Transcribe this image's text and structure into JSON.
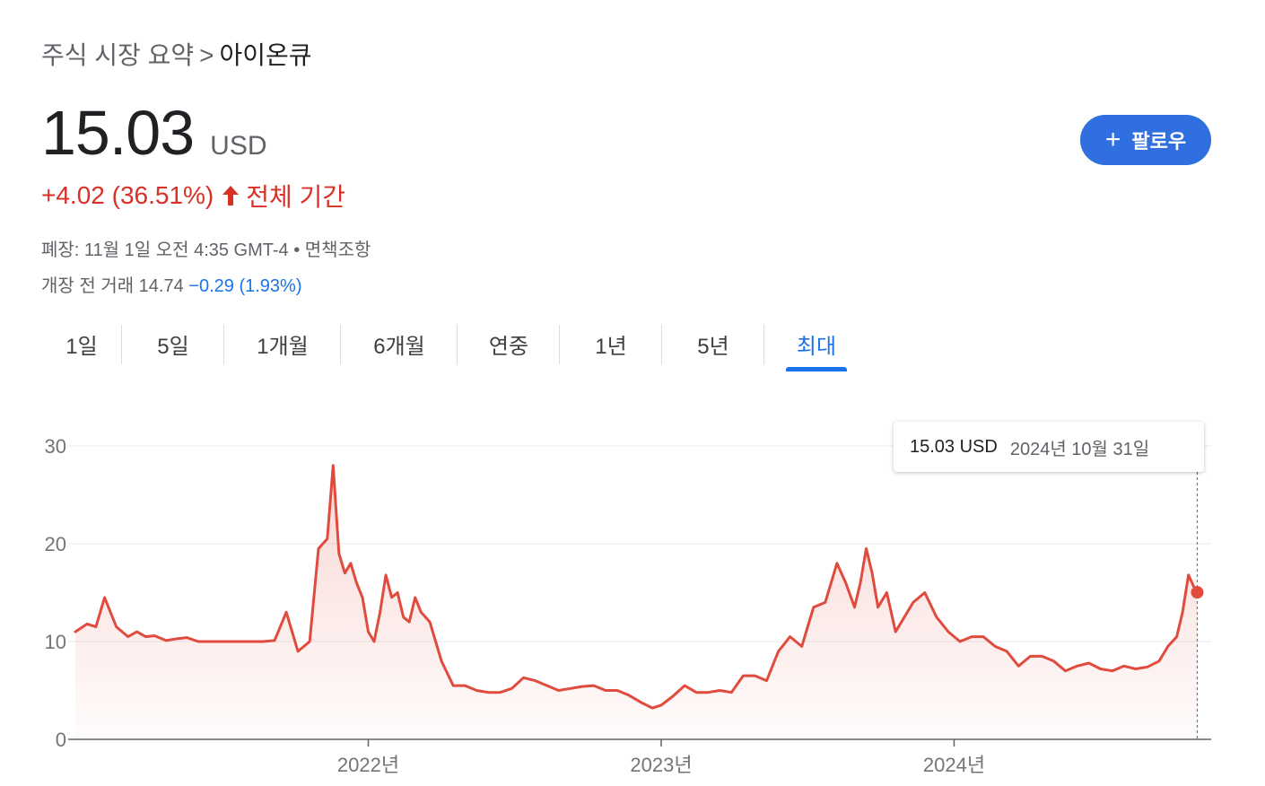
{
  "breadcrumb": {
    "parent": "주식 시장 요약",
    "separator": ">",
    "current": "아이온큐"
  },
  "quote": {
    "price": "15.03",
    "currency": "USD",
    "change": "+4.02 (36.51%)",
    "period": "전체 기간",
    "close_info": "폐장: 11월 1일 오전 4:35 GMT-4 • 면책조항",
    "premarket_label": "개장 전 거래 14.74",
    "premarket_change": "−0.29 (1.93%)"
  },
  "follow_button": {
    "label": "팔로우"
  },
  "tabs": [
    {
      "label": "1일"
    },
    {
      "label": "5일"
    },
    {
      "label": "1개월"
    },
    {
      "label": "6개월"
    },
    {
      "label": "연중"
    },
    {
      "label": "1년"
    },
    {
      "label": "5년"
    },
    {
      "label": "최대",
      "active": true
    }
  ],
  "tooltip": {
    "value": "15.03 USD",
    "date": "2024년 10월 31일"
  },
  "colors": {
    "line": "#e04b3d",
    "accent": "#1a73e8",
    "positive_change": "#d93025"
  },
  "chart_data": {
    "type": "area",
    "x_tick_labels": [
      "2022년",
      "2023년",
      "2024년"
    ],
    "y_ticks": [
      0,
      10,
      20,
      30
    ],
    "ylim": [
      0,
      30
    ],
    "xlim": [
      2021.0,
      2024.85
    ],
    "grid": true,
    "x": [
      2021.0,
      2021.04,
      2021.07,
      2021.1,
      2021.14,
      2021.18,
      2021.21,
      2021.24,
      2021.27,
      2021.31,
      2021.35,
      2021.38,
      2021.42,
      2021.45,
      2021.48,
      2021.52,
      2021.56,
      2021.6,
      2021.64,
      2021.68,
      2021.72,
      2021.76,
      2021.8,
      2021.83,
      2021.86,
      2021.88,
      2021.9,
      2021.92,
      2021.94,
      2021.96,
      2021.98,
      2022.0,
      2022.02,
      2022.04,
      2022.06,
      2022.08,
      2022.1,
      2022.12,
      2022.14,
      2022.16,
      2022.18,
      2022.21,
      2022.25,
      2022.29,
      2022.33,
      2022.37,
      2022.41,
      2022.45,
      2022.49,
      2022.53,
      2022.57,
      2022.61,
      2022.65,
      2022.69,
      2022.73,
      2022.77,
      2022.81,
      2022.85,
      2022.89,
      2022.93,
      2022.97,
      2023.0,
      2023.04,
      2023.08,
      2023.12,
      2023.16,
      2023.2,
      2023.24,
      2023.28,
      2023.32,
      2023.36,
      2023.4,
      2023.44,
      2023.48,
      2023.52,
      2023.56,
      2023.6,
      2023.63,
      2023.66,
      2023.68,
      2023.7,
      2023.72,
      2023.74,
      2023.77,
      2023.8,
      2023.83,
      2023.86,
      2023.9,
      2023.94,
      2023.98,
      2024.02,
      2024.06,
      2024.1,
      2024.14,
      2024.18,
      2024.22,
      2024.26,
      2024.3,
      2024.34,
      2024.38,
      2024.42,
      2024.46,
      2024.5,
      2024.54,
      2024.58,
      2024.62,
      2024.66,
      2024.7,
      2024.73,
      2024.76,
      2024.78,
      2024.8,
      2024.82,
      2024.83
    ],
    "values": [
      11.0,
      11.8,
      11.5,
      14.5,
      11.5,
      10.5,
      11.0,
      10.5,
      10.6,
      10.1,
      10.3,
      10.4,
      10.0,
      10.0,
      10.0,
      10.0,
      10.0,
      10.0,
      10.0,
      10.1,
      13.0,
      9.0,
      10.0,
      19.5,
      20.5,
      28.0,
      19.0,
      17.0,
      18.0,
      16.0,
      14.5,
      11.0,
      10.0,
      13.0,
      16.8,
      14.5,
      15.0,
      12.5,
      12.0,
      14.5,
      13.0,
      12.0,
      8.0,
      5.5,
      5.5,
      5.0,
      4.8,
      4.8,
      5.2,
      6.3,
      6.0,
      5.5,
      5.0,
      5.2,
      5.4,
      5.5,
      5.0,
      5.0,
      4.5,
      3.8,
      3.2,
      3.5,
      4.4,
      5.5,
      4.8,
      4.8,
      5.0,
      4.8,
      6.5,
      6.5,
      6.0,
      9.0,
      10.5,
      9.5,
      13.5,
      14.0,
      18.0,
      16.0,
      13.5,
      16.0,
      19.5,
      17.0,
      13.5,
      15.0,
      11.0,
      12.5,
      14.0,
      15.0,
      12.5,
      11.0,
      10.0,
      10.5,
      10.5,
      9.5,
      9.0,
      7.5,
      8.5,
      8.5,
      8.0,
      7.0,
      7.5,
      7.8,
      7.2,
      7.0,
      7.5,
      7.2,
      7.4,
      8.0,
      9.5,
      10.5,
      13.0,
      16.8,
      15.5,
      15.03
    ]
  }
}
